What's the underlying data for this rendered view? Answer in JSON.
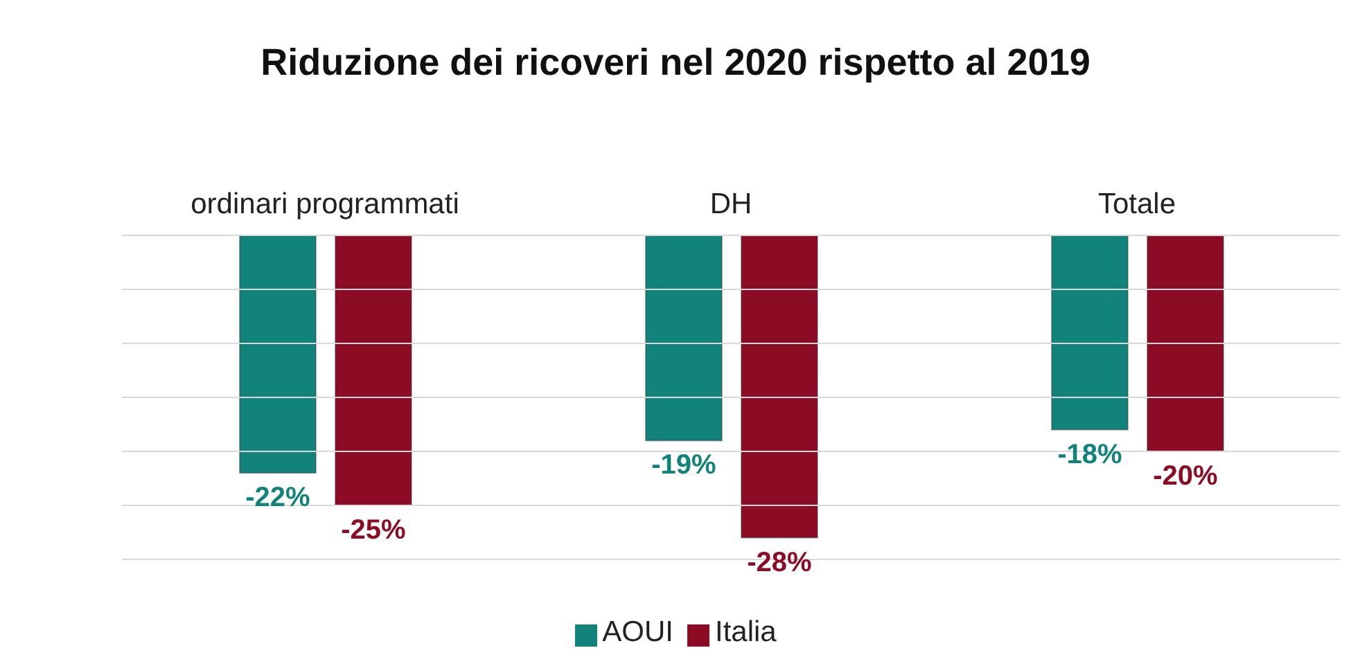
{
  "chart_data": {
    "type": "bar",
    "title": "Riduzione dei ricoveri nel 2020 rispetto al 2019",
    "categories": [
      "ordinari programmati",
      "DH",
      "Totale"
    ],
    "series": [
      {
        "name": "AOUI",
        "color": "#12837b",
        "values": [
          -22,
          -19,
          -18
        ],
        "value_labels": [
          "-22%",
          "-19%",
          "-18%"
        ]
      },
      {
        "name": "Italia",
        "color": "#8c0b25",
        "values": [
          -25,
          -28,
          -20
        ],
        "value_labels": [
          "-25%",
          "-28%",
          "-20%"
        ]
      }
    ],
    "ylim": [
      -30,
      0
    ],
    "yticks": [
      {
        "value": 0,
        "label": null
      },
      {
        "value": -5,
        "label": null
      },
      {
        "value": -10,
        "label": null
      },
      {
        "value": -15,
        "label": null
      },
      {
        "value": -20,
        "label": null
      },
      {
        "value": -25,
        "label": null
      },
      {
        "value": -30,
        "label": null
      }
    ],
    "grid": "y",
    "tick_labels": "x",
    "legend": "bottom",
    "data_labels": true
  }
}
